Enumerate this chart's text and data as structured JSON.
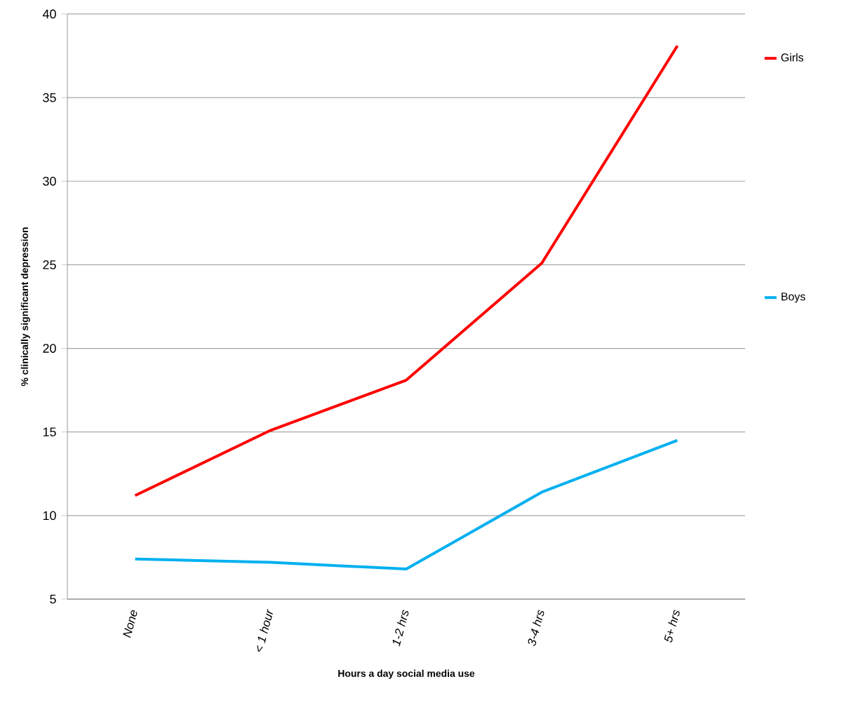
{
  "chart_data": {
    "type": "line",
    "xlabel": "Hours a day social media use",
    "ylabel": "% clinically significant depression",
    "categories": [
      "None",
      "< 1 hour",
      "1-2 hrs",
      "3-4 hrs",
      "5+ hrs"
    ],
    "series": [
      {
        "name": "Girls",
        "color": "#ff0000",
        "values": [
          11.2,
          15.1,
          18.1,
          25.1,
          38.1
        ]
      },
      {
        "name": "Boys",
        "color": "#00b0f0",
        "values": [
          7.4,
          7.2,
          6.8,
          11.4,
          14.5
        ]
      }
    ],
    "ylim": [
      5,
      40
    ],
    "yticks": [
      5,
      10,
      15,
      20,
      25,
      30,
      35,
      40
    ],
    "grid": "y",
    "legend": "right",
    "marker": "none",
    "line_style": "solid"
  }
}
